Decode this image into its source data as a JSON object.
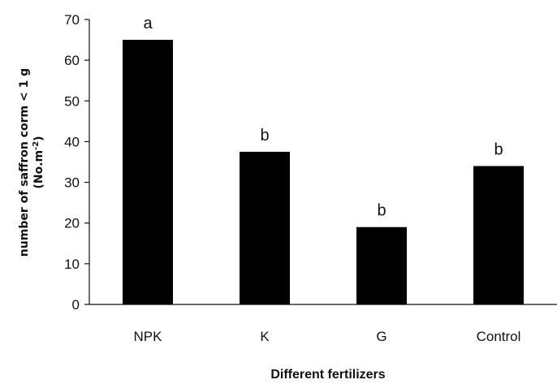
{
  "chart_data": {
    "type": "bar",
    "categories": [
      "NPK",
      "K",
      "G",
      "Control"
    ],
    "values": [
      65,
      37.5,
      19,
      34
    ],
    "annotations": [
      "a",
      "b",
      "b",
      "b"
    ],
    "xlabel": "Different  fertilizers",
    "ylabel_line1": "number of saffron corm < 1 g",
    "ylabel_line2_main": "(No.m",
    "ylabel_line2_sup": "-2",
    "ylabel_line2_end": ")",
    "ylim": [
      0,
      70
    ],
    "yticks": [
      0,
      10,
      20,
      30,
      40,
      50,
      60,
      70
    ],
    "bar_color": "#000000",
    "grid": false,
    "legend": "none"
  }
}
